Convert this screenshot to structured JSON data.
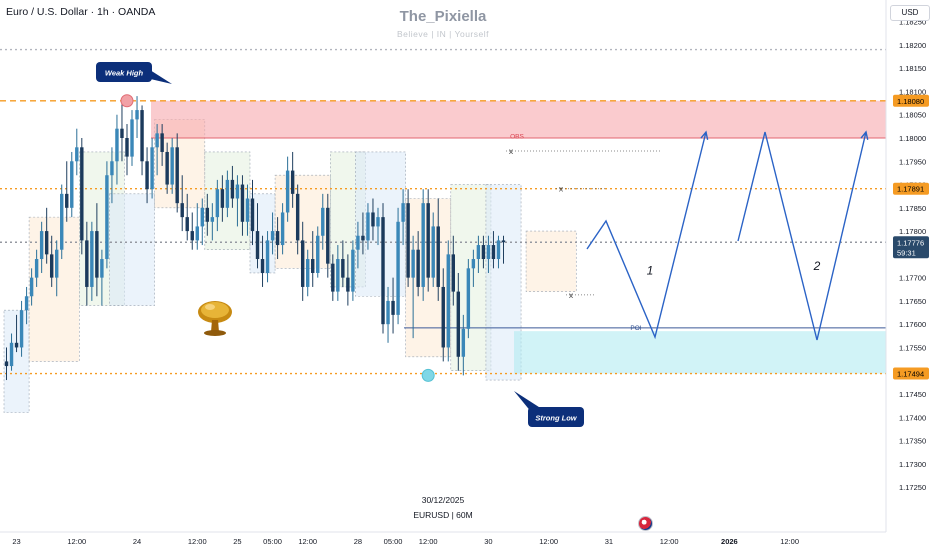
{
  "header": {
    "symbol_title": "Euro / U.S. Dollar · 1h · OANDA",
    "currency_button": "USD"
  },
  "watermark": {
    "title": "The_Pixiella",
    "subtitle": "Believe | IN | Yourself"
  },
  "footer": {
    "date": "30/12/2025",
    "symbol": "EURUSD | 60M",
    "flag_icon": "us-flag-icon"
  },
  "decor": {
    "mushroom_icon": "golden-tree-icon"
  },
  "chart_data": {
    "type": "candlestick",
    "instrument": "EURUSD",
    "interval": "1h",
    "ylim": [
      1.17175,
      1.18275
    ],
    "y_ticks": [
      1.1725,
      1.173,
      1.1735,
      1.174,
      1.1745,
      1.175,
      1.1755,
      1.176,
      1.1765,
      1.177,
      1.1775,
      1.178,
      1.1785,
      1.179,
      1.1795,
      1.18,
      1.1805,
      1.181,
      1.1815,
      1.182,
      1.1825
    ],
    "y_tick_labels": [
      "1.17250",
      "1.17300",
      "1.17350",
      "1.17400",
      "1.17450",
      "1.17500",
      "1.17550",
      "1.17600",
      "1.17650",
      "1.17700",
      "1.17750",
      "1.17800",
      "1.17850",
      "1.17900",
      "1.17950",
      "1.18000",
      "1.18050",
      "1.18100",
      "1.18150",
      "1.18200",
      "1.18250"
    ],
    "x_labels": [
      {
        "label": "23",
        "bar": 2
      },
      {
        "label": "12:00",
        "bar": 14
      },
      {
        "label": "24",
        "bar": 26
      },
      {
        "label": "12:00",
        "bar": 38
      },
      {
        "label": "25",
        "bar": 46
      },
      {
        "label": "05:00",
        "bar": 53
      },
      {
        "label": "12:00",
        "bar": 60
      },
      {
        "label": "28",
        "bar": 70
      },
      {
        "label": "05:00",
        "bar": 77
      },
      {
        "label": "12:00",
        "bar": 84
      },
      {
        "label": "30",
        "bar": 96
      },
      {
        "label": "12:00",
        "bar": 108
      },
      {
        "label": "31",
        "bar": 120
      },
      {
        "label": "12:00",
        "bar": 132
      },
      {
        "label": "2026",
        "bar": 144
      },
      {
        "label": "12:00",
        "bar": 156
      }
    ],
    "candles": [
      [
        1.1752,
        1.1755,
        1.1748,
        1.1751
      ],
      [
        1.1751,
        1.1758,
        1.175,
        1.1756
      ],
      [
        1.1756,
        1.1762,
        1.1754,
        1.1755
      ],
      [
        1.1755,
        1.1765,
        1.1753,
        1.1763
      ],
      [
        1.1763,
        1.1768,
        1.176,
        1.1766
      ],
      [
        1.1766,
        1.1772,
        1.1764,
        1.177
      ],
      [
        1.177,
        1.1776,
        1.1768,
        1.1774
      ],
      [
        1.1774,
        1.1782,
        1.1771,
        1.178
      ],
      [
        1.178,
        1.1785,
        1.1773,
        1.1775
      ],
      [
        1.1775,
        1.1779,
        1.1768,
        1.177
      ],
      [
        1.177,
        1.1778,
        1.1766,
        1.1776
      ],
      [
        1.1776,
        1.179,
        1.1774,
        1.1788
      ],
      [
        1.1788,
        1.1795,
        1.1782,
        1.1785
      ],
      [
        1.1785,
        1.1797,
        1.1783,
        1.1795
      ],
      [
        1.1795,
        1.1802,
        1.1792,
        1.1798
      ],
      [
        1.1798,
        1.18,
        1.1775,
        1.1778
      ],
      [
        1.1778,
        1.1782,
        1.1764,
        1.1768
      ],
      [
        1.1768,
        1.1782,
        1.1765,
        1.178
      ],
      [
        1.178,
        1.1786,
        1.1766,
        1.177
      ],
      [
        1.177,
        1.1776,
        1.1764,
        1.1774
      ],
      [
        1.1774,
        1.1795,
        1.1772,
        1.1792
      ],
      [
        1.1792,
        1.1798,
        1.1786,
        1.1795
      ],
      [
        1.1795,
        1.1805,
        1.179,
        1.1802
      ],
      [
        1.1802,
        1.1808,
        1.1795,
        1.18
      ],
      [
        1.18,
        1.1803,
        1.1792,
        1.1796
      ],
      [
        1.1796,
        1.1806,
        1.1794,
        1.1804
      ],
      [
        1.1804,
        1.1809,
        1.18,
        1.1806
      ],
      [
        1.1806,
        1.1807,
        1.1792,
        1.1795
      ],
      [
        1.1795,
        1.1798,
        1.1786,
        1.1789
      ],
      [
        1.1789,
        1.18,
        1.1787,
        1.1798
      ],
      [
        1.1798,
        1.1803,
        1.1792,
        1.1801
      ],
      [
        1.1801,
        1.1803,
        1.1794,
        1.1797
      ],
      [
        1.1797,
        1.1799,
        1.1788,
        1.179
      ],
      [
        1.179,
        1.18,
        1.1788,
        1.1798
      ],
      [
        1.1798,
        1.1801,
        1.1784,
        1.1786
      ],
      [
        1.1786,
        1.1792,
        1.178,
        1.1783
      ],
      [
        1.1783,
        1.1788,
        1.1778,
        1.178
      ],
      [
        1.178,
        1.1784,
        1.1776,
        1.1778
      ],
      [
        1.1778,
        1.1786,
        1.1776,
        1.1781
      ],
      [
        1.1781,
        1.1787,
        1.1777,
        1.1785
      ],
      [
        1.1785,
        1.1788,
        1.1779,
        1.1782
      ],
      [
        1.1782,
        1.1786,
        1.1778,
        1.1783
      ],
      [
        1.1783,
        1.1791,
        1.178,
        1.1789
      ],
      [
        1.1789,
        1.1792,
        1.1782,
        1.1785
      ],
      [
        1.1785,
        1.1793,
        1.1783,
        1.1791
      ],
      [
        1.1791,
        1.1794,
        1.1785,
        1.1787
      ],
      [
        1.1787,
        1.1792,
        1.1781,
        1.179
      ],
      [
        1.179,
        1.1792,
        1.1779,
        1.1782
      ],
      [
        1.1782,
        1.179,
        1.1779,
        1.1787
      ],
      [
        1.1787,
        1.1791,
        1.1777,
        1.178
      ],
      [
        1.178,
        1.1786,
        1.1772,
        1.1774
      ],
      [
        1.1774,
        1.1779,
        1.1768,
        1.1771
      ],
      [
        1.1771,
        1.178,
        1.1769,
        1.1778
      ],
      [
        1.1778,
        1.1784,
        1.1775,
        1.178
      ],
      [
        1.178,
        1.1783,
        1.1774,
        1.1777
      ],
      [
        1.1777,
        1.1786,
        1.1775,
        1.1784
      ],
      [
        1.1784,
        1.1796,
        1.1782,
        1.1793
      ],
      [
        1.1793,
        1.1797,
        1.1785,
        1.1788
      ],
      [
        1.1788,
        1.179,
        1.1775,
        1.1778
      ],
      [
        1.1778,
        1.1782,
        1.1765,
        1.1768
      ],
      [
        1.1768,
        1.1776,
        1.1766,
        1.1774
      ],
      [
        1.1774,
        1.178,
        1.1768,
        1.1771
      ],
      [
        1.1771,
        1.1781,
        1.177,
        1.1779
      ],
      [
        1.1779,
        1.1788,
        1.1776,
        1.1785
      ],
      [
        1.1785,
        1.1788,
        1.177,
        1.1773
      ],
      [
        1.1773,
        1.1775,
        1.1765,
        1.1767
      ],
      [
        1.1767,
        1.1777,
        1.1765,
        1.1774
      ],
      [
        1.1774,
        1.1778,
        1.1768,
        1.177
      ],
      [
        1.177,
        1.1775,
        1.1764,
        1.1767
      ],
      [
        1.1767,
        1.1778,
        1.1765,
        1.1776
      ],
      [
        1.1776,
        1.1782,
        1.1772,
        1.1779
      ],
      [
        1.1779,
        1.1784,
        1.1775,
        1.1778
      ],
      [
        1.1778,
        1.1786,
        1.1776,
        1.1784
      ],
      [
        1.1784,
        1.1787,
        1.1778,
        1.1781
      ],
      [
        1.1781,
        1.1785,
        1.1777,
        1.1783
      ],
      [
        1.1783,
        1.1786,
        1.1758,
        1.176
      ],
      [
        1.176,
        1.1768,
        1.1756,
        1.1765
      ],
      [
        1.1765,
        1.177,
        1.1758,
        1.1762
      ],
      [
        1.1762,
        1.1785,
        1.176,
        1.1782
      ],
      [
        1.1782,
        1.1789,
        1.1777,
        1.1786
      ],
      [
        1.1786,
        1.1789,
        1.1768,
        1.177
      ],
      [
        1.177,
        1.1779,
        1.1757,
        1.1776
      ],
      [
        1.1776,
        1.178,
        1.1766,
        1.1768
      ],
      [
        1.1768,
        1.1789,
        1.1765,
        1.1786
      ],
      [
        1.1786,
        1.1789,
        1.1767,
        1.177
      ],
      [
        1.177,
        1.1784,
        1.1768,
        1.1781
      ],
      [
        1.1781,
        1.1787,
        1.1765,
        1.1768
      ],
      [
        1.1768,
        1.1772,
        1.1752,
        1.1755
      ],
      [
        1.1755,
        1.1778,
        1.1752,
        1.1775
      ],
      [
        1.1775,
        1.1779,
        1.1764,
        1.1767
      ],
      [
        1.1767,
        1.1771,
        1.175,
        1.1753
      ],
      [
        1.1753,
        1.1762,
        1.1749,
        1.1759
      ],
      [
        1.1759,
        1.1774,
        1.1757,
        1.1772
      ],
      [
        1.1772,
        1.1776,
        1.1768,
        1.1774
      ],
      [
        1.1774,
        1.1779,
        1.1771,
        1.1777
      ],
      [
        1.1777,
        1.1779,
        1.1772,
        1.1774
      ],
      [
        1.1774,
        1.1779,
        1.1771,
        1.1777
      ],
      [
        1.1777,
        1.178,
        1.1772,
        1.1774
      ],
      [
        1.1774,
        1.1779,
        1.1772,
        1.1778
      ],
      [
        1.1778,
        1.1779,
        1.1773,
        1.17776
      ]
    ],
    "horizontal_lines": [
      {
        "price": 1.1819,
        "style": "dotted",
        "color": "#b2b5be"
      },
      {
        "price": 1.1808,
        "style": "dashed",
        "color": "#f59b23"
      },
      {
        "price": 1.17891,
        "style": "dotted",
        "color": "#f59b23"
      },
      {
        "price": 1.17494,
        "style": "dotted",
        "color": "#f59b23"
      },
      {
        "price": 1.17776,
        "style": "dotted",
        "color": "#9598a1"
      }
    ],
    "price_labels": [
      {
        "price": 1.1808,
        "text": "1.18080",
        "bg": "#f59b23",
        "fg": "#000000"
      },
      {
        "price": 1.17891,
        "text": "1.17891",
        "bg": "#f59b23",
        "fg": "#000000"
      },
      {
        "price": 1.17776,
        "text": "1.17776",
        "bg": "#2a4a6b",
        "fg": "#ffffff",
        "sub": "59:31"
      },
      {
        "price": 1.17494,
        "text": "1.17494",
        "bg": "#f59b23",
        "fg": "#000000"
      }
    ],
    "zones": [
      {
        "name": "supply-zone",
        "x_from": 151,
        "x_to": 886,
        "price_top": 1.1808,
        "price_bottom": 1.18,
        "color": "#f7a8ad"
      },
      {
        "name": "poi-zone",
        "x_from": 514,
        "x_to": 886,
        "price_top": 1.17585,
        "price_bottom": 1.17494,
        "color": "#b2ebf2"
      }
    ],
    "labels": [
      {
        "text": "OBS",
        "price": 1.18003,
        "x": 517
      },
      {
        "text": "POI",
        "price": 1.17592,
        "x": 636
      },
      {
        "text": "1",
        "price": 1.17715,
        "x": 650
      },
      {
        "text": "2",
        "price": 1.17725,
        "x": 817
      }
    ],
    "callouts": [
      {
        "text": "Weak High",
        "anchor_bar": 24,
        "price": 1.1808
      },
      {
        "text": "Strong Low",
        "anchor_bar": 84,
        "price": 1.1749
      }
    ],
    "projection_paths": [
      [
        [
          587,
          249
        ],
        [
          606,
          221
        ],
        [
          655,
          337
        ],
        [
          706,
          132
        ]
      ],
      [
        [
          738,
          241
        ],
        [
          765,
          132
        ],
        [
          817,
          340
        ],
        [
          866,
          132
        ]
      ]
    ]
  }
}
